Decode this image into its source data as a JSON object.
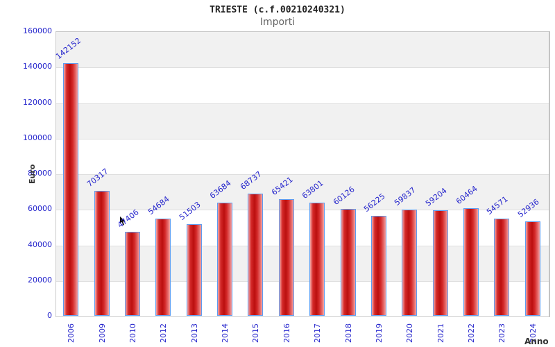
{
  "chart_data": {
    "type": "bar",
    "title": "TRIESTE (c.f.00210240321)",
    "subtitle": "Importi",
    "xlabel": "Anno",
    "ylabel": "Euro",
    "ylim": [
      0,
      160000
    ],
    "ytick_step": 20000,
    "ytick_labels": [
      "0",
      "20000",
      "40000",
      "60000",
      "80000",
      "100000",
      "120000",
      "140000",
      "160000"
    ],
    "categories": [
      "2006",
      "2009",
      "2010",
      "2012",
      "2013",
      "2014",
      "2015",
      "2016",
      "2017",
      "2018",
      "2019",
      "2020",
      "2021",
      "2022",
      "2023",
      "2024"
    ],
    "values": [
      142152,
      70317,
      47406,
      54684,
      51503,
      63684,
      68737,
      65421,
      63801,
      60126,
      56225,
      59837,
      59204,
      60464,
      54571,
      52936
    ],
    "grid": "horizontal",
    "legend": "none",
    "value_labels_shown": true,
    "colors": {
      "bar_border": "#5e9bef",
      "bar_fill_edge": "#f5a8a8",
      "bar_fill_mid_light": "#e87272",
      "bar_fill_dark": "#bb0f0f",
      "bar_fill_dark2": "#d42a2a",
      "tick_label": "#2424cc",
      "value_label": "#2424cc",
      "band_gray": "#f1f1f1",
      "band_white": "#ffffff",
      "gridline": "#dedede",
      "plot_border": "#c9c9c9",
      "title_color": "#222222",
      "subtitle_color": "#666666",
      "axis_title_color": "#333333"
    }
  }
}
